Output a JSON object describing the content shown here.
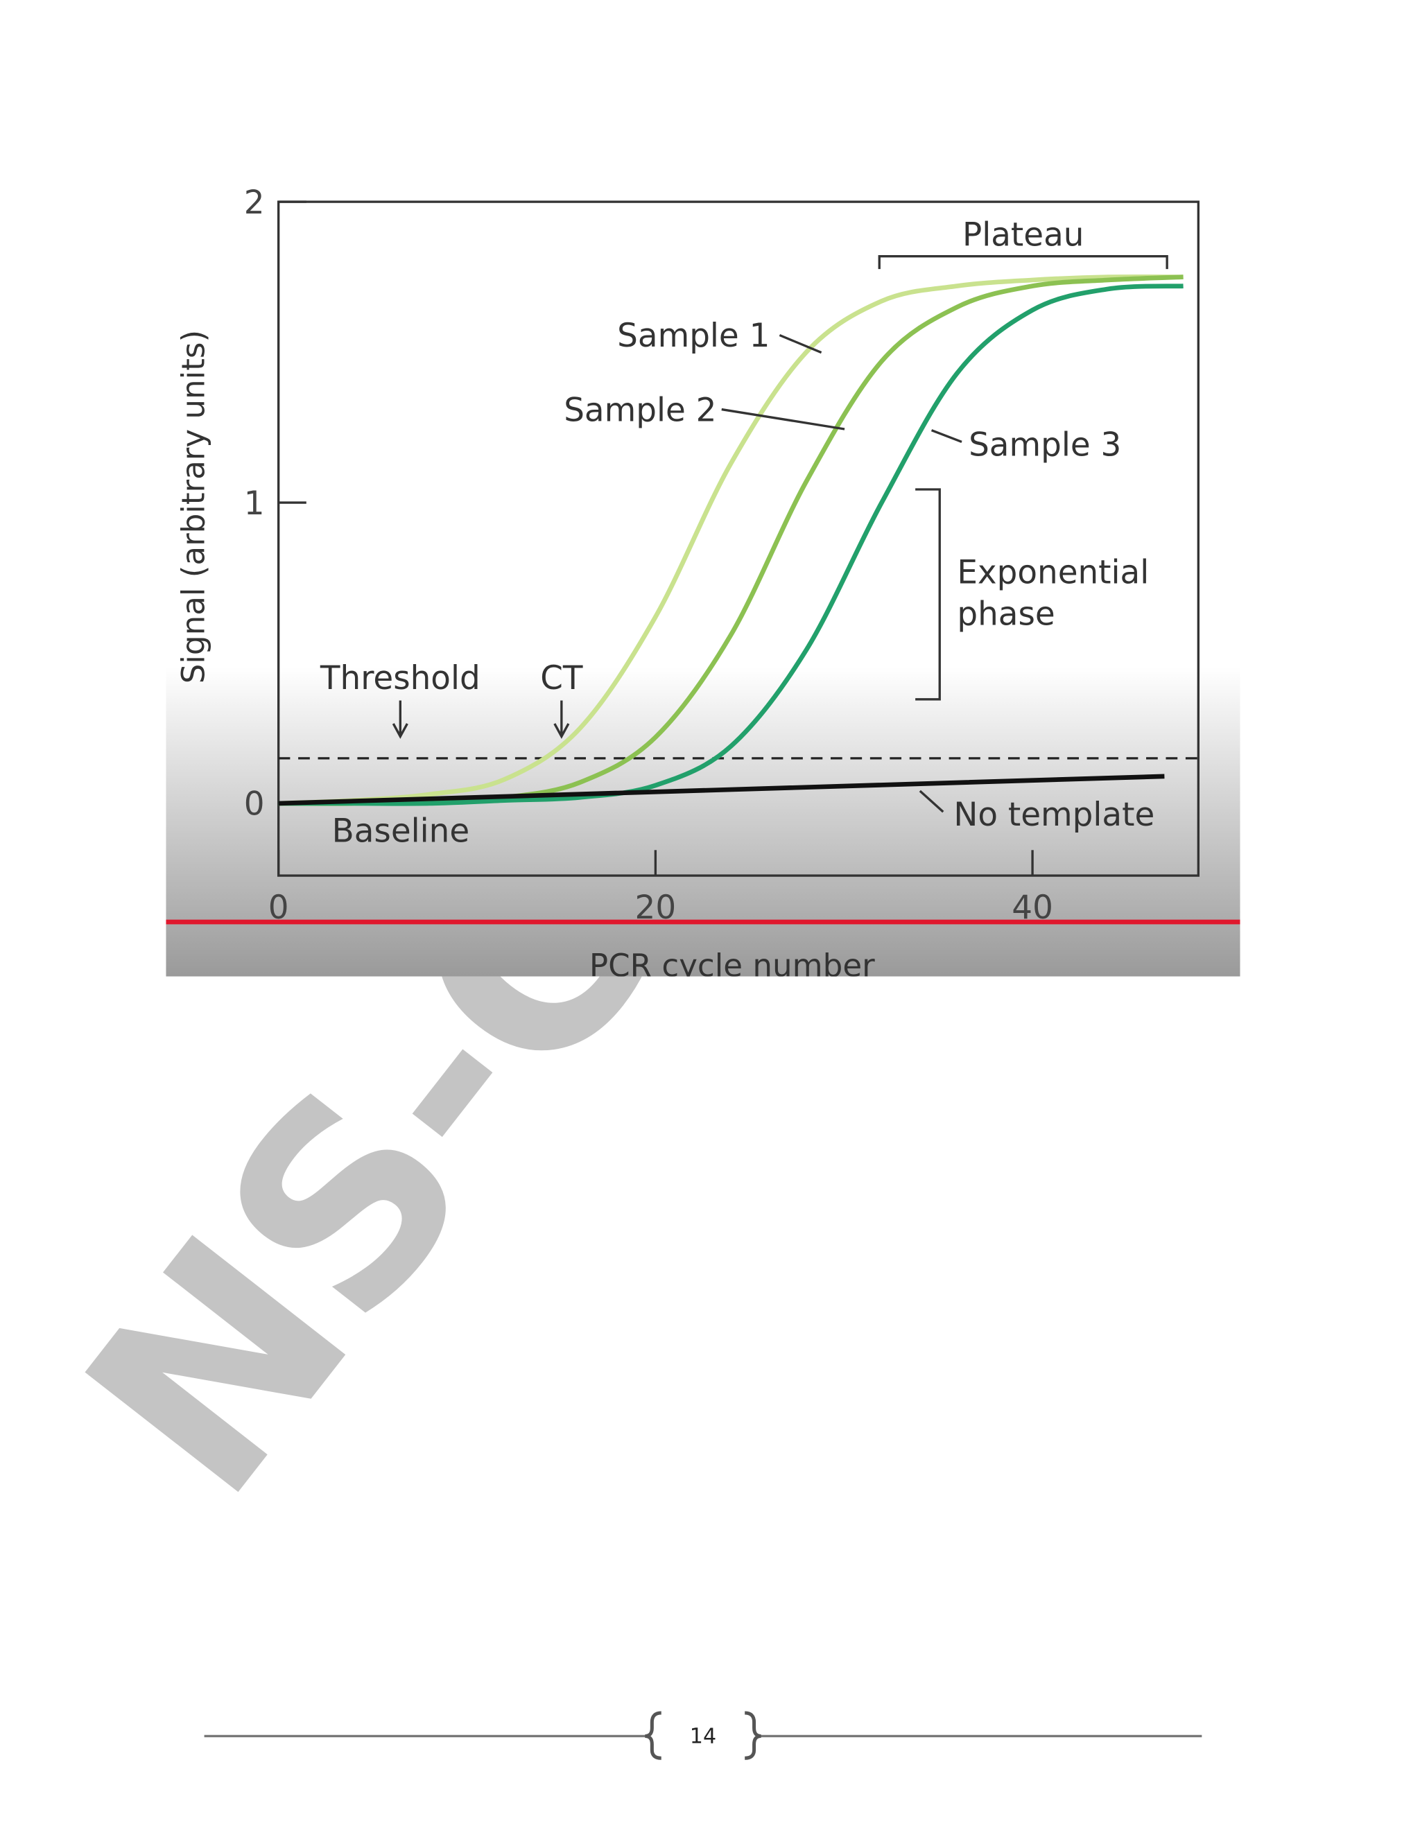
{
  "chart_data": {
    "type": "line",
    "x_label": "PCR cycle number",
    "y_label": "Signal (arbitrary units)",
    "xlim": [
      0,
      48.8
    ],
    "ylim": [
      -0.24,
      2
    ],
    "xticks": [
      0,
      20,
      40
    ],
    "yticks": [
      0,
      1,
      2
    ],
    "threshold": 0.15,
    "series": [
      {
        "name": "Sample 1",
        "color": "#c9e28e",
        "x": [
          0,
          4,
          8,
          12,
          16,
          20,
          24,
          28,
          32,
          36,
          40,
          44,
          48
        ],
        "values": [
          0,
          0.01,
          0.03,
          0.08,
          0.25,
          0.62,
          1.13,
          1.5,
          1.67,
          1.72,
          1.74,
          1.75,
          1.75
        ]
      },
      {
        "name": "Sample 2",
        "color": "#8cc152",
        "x": [
          0,
          4,
          8,
          12,
          16,
          20,
          24,
          28,
          32,
          36,
          40,
          44,
          48
        ],
        "values": [
          0,
          0,
          0.01,
          0.02,
          0.07,
          0.22,
          0.56,
          1.07,
          1.47,
          1.65,
          1.72,
          1.74,
          1.75
        ]
      },
      {
        "name": "Sample 3",
        "color": "#22a06b",
        "x": [
          0,
          4,
          8,
          12,
          16,
          20,
          24,
          28,
          32,
          36,
          40,
          44,
          48
        ],
        "values": [
          0,
          0,
          0,
          0.01,
          0.02,
          0.06,
          0.19,
          0.51,
          1.0,
          1.43,
          1.64,
          1.71,
          1.72
        ]
      },
      {
        "name": "No template",
        "color": "#111111",
        "x": [
          0,
          47
        ],
        "values": [
          0,
          0.09
        ]
      }
    ],
    "annotations": {
      "plateau": "Plateau",
      "exponential": [
        "Exponential",
        "phase"
      ],
      "threshold": "Threshold",
      "ct": "CT",
      "baseline": "Baseline"
    }
  },
  "watermark": "NS-G",
  "page_number": "14"
}
